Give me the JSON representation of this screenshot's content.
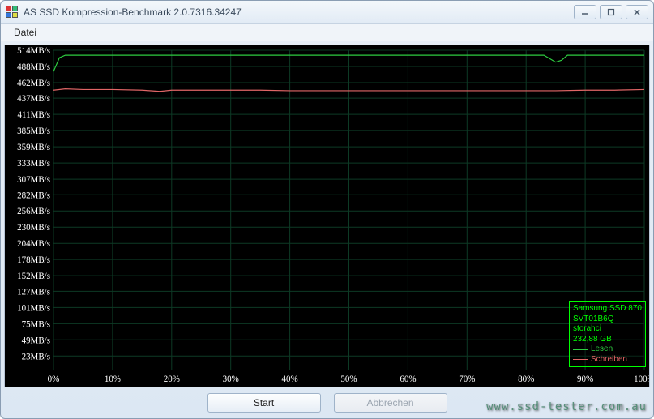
{
  "window": {
    "title": "AS SSD Kompression-Benchmark 2.0.7316.34247"
  },
  "menu": {
    "file": "Datei"
  },
  "chart": {
    "type": "line",
    "background_color": "#000000",
    "grid_color": "#0d3a25",
    "axis_label_color": "#ffffff",
    "axis_font_size": 11,
    "y_max": 514,
    "y_min": 23,
    "y_ticks": [
      514,
      488,
      462,
      437,
      411,
      385,
      359,
      333,
      307,
      282,
      256,
      230,
      204,
      178,
      152,
      127,
      101,
      75,
      49,
      23
    ],
    "y_unit": "MB/s",
    "x_ticks": [
      0,
      10,
      20,
      30,
      40,
      50,
      60,
      70,
      80,
      90,
      100
    ],
    "x_unit": "%",
    "series": [
      {
        "name": "Lesen",
        "color": "#2ecc40",
        "line_width": 1.2,
        "points": [
          [
            0,
            480
          ],
          [
            1,
            502
          ],
          [
            2,
            506
          ],
          [
            5,
            506
          ],
          [
            10,
            506
          ],
          [
            15,
            506
          ],
          [
            20,
            506
          ],
          [
            25,
            506
          ],
          [
            30,
            506
          ],
          [
            35,
            506
          ],
          [
            40,
            506
          ],
          [
            45,
            506
          ],
          [
            50,
            506
          ],
          [
            55,
            506
          ],
          [
            60,
            506
          ],
          [
            65,
            506
          ],
          [
            70,
            506
          ],
          [
            75,
            506
          ],
          [
            80,
            506
          ],
          [
            83,
            506
          ],
          [
            85,
            495
          ],
          [
            86,
            498
          ],
          [
            87,
            506
          ],
          [
            90,
            506
          ],
          [
            95,
            506
          ],
          [
            100,
            506
          ]
        ]
      },
      {
        "name": "Schreiben",
        "color": "#e06666",
        "line_width": 1.2,
        "points": [
          [
            0,
            450
          ],
          [
            2,
            452
          ],
          [
            5,
            451
          ],
          [
            10,
            451
          ],
          [
            15,
            450
          ],
          [
            18,
            448
          ],
          [
            20,
            450
          ],
          [
            25,
            450
          ],
          [
            30,
            450
          ],
          [
            35,
            450
          ],
          [
            40,
            449
          ],
          [
            45,
            449
          ],
          [
            50,
            449
          ],
          [
            55,
            449
          ],
          [
            60,
            449
          ],
          [
            65,
            449
          ],
          [
            70,
            449
          ],
          [
            75,
            449
          ],
          [
            80,
            449
          ],
          [
            85,
            449
          ],
          [
            90,
            450
          ],
          [
            95,
            450
          ],
          [
            100,
            451
          ]
        ]
      }
    ],
    "legend": {
      "device": "Samsung SSD 870",
      "firmware": "SVT01B6Q",
      "driver": "storahci",
      "capacity": "232,88 GB",
      "read_label": "Lesen",
      "write_label": "Schreiben"
    }
  },
  "buttons": {
    "start": "Start",
    "abort": "Abbrechen"
  },
  "watermark": "www.ssd-tester.com.au"
}
